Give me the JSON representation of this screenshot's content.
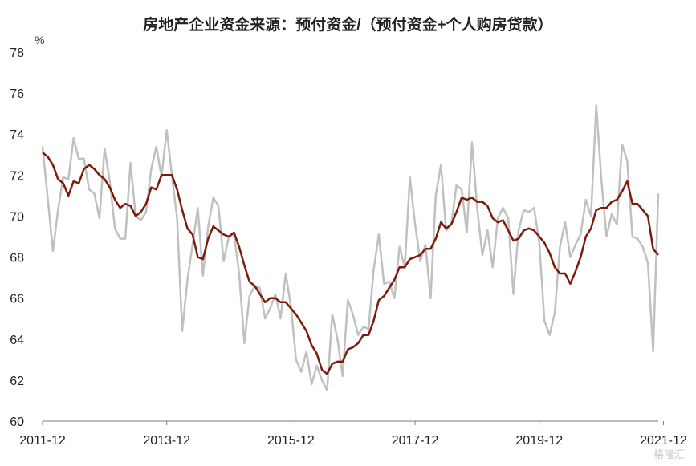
{
  "chart_data": {
    "type": "line",
    "title": "房地产企业资金来源：预付资金/（预付资金+个人购房贷款）",
    "unit": "%",
    "xlabel": "",
    "ylabel": "",
    "ylim": [
      60,
      78
    ],
    "yticks": [
      60,
      62,
      64,
      66,
      68,
      70,
      72,
      74,
      76,
      78
    ],
    "x_tick_labels": [
      "2011-12",
      "2013-12",
      "2015-12",
      "2017-12",
      "2019-12",
      "2021-12"
    ],
    "x_range": [
      "2011-12",
      "2021-12"
    ],
    "grid": false,
    "legend": "none",
    "series": [
      {
        "color": "#c0c0c0",
        "values": [
          73.4,
          70.9,
          68.3,
          70.3,
          71.9,
          71.8,
          73.8,
          72.8,
          72.8,
          71.3,
          71.1,
          69.9,
          73.3,
          71.7,
          69.4,
          68.9,
          68.9,
          72.6,
          70.0,
          69.8,
          70.2,
          72.3,
          73.4,
          71.9,
          74.2,
          72.0,
          69.9,
          64.4,
          66.9,
          68.6,
          70.4,
          67.1,
          69.5,
          70.9,
          70.5,
          67.8,
          69.0,
          69.1,
          67.2,
          63.8,
          66.1,
          66.6,
          66.5,
          65.0,
          65.5,
          66.2,
          65.0,
          67.2,
          65.6,
          63.0,
          62.4,
          63.4,
          61.8,
          62.7,
          62.0,
          61.5,
          65.2,
          64.0,
          62.2,
          65.9,
          65.2,
          64.2,
          64.6,
          64.5,
          67.4,
          69.1,
          66.7,
          66.8,
          66.0,
          68.5,
          67.5,
          71.9,
          69.6,
          67.8,
          68.6,
          66.0,
          71.0,
          72.5,
          69.3,
          69.6,
          71.5,
          71.3,
          69.2,
          73.6,
          70.4,
          68.1,
          69.3,
          67.5,
          69.9,
          70.4,
          69.9,
          66.2,
          69.3,
          70.3,
          70.2,
          70.4,
          68.7,
          64.9,
          64.2,
          65.3,
          68.5,
          69.7,
          68.0,
          68.6,
          69.1,
          70.8,
          70.0,
          75.4,
          71.8,
          69.0,
          70.1,
          69.6,
          73.5,
          72.7,
          69.0,
          68.9,
          68.5,
          67.7,
          63.4,
          71.1
        ]
      },
      {
        "color": "#7b1c0b",
        "values": [
          73.1,
          72.9,
          72.5,
          71.8,
          71.6,
          71.0,
          71.7,
          71.6,
          72.3,
          72.5,
          72.3,
          72.0,
          71.8,
          71.4,
          70.8,
          70.4,
          70.6,
          70.5,
          70.0,
          70.2,
          70.6,
          71.4,
          71.3,
          72.0,
          72.0,
          72.0,
          71.3,
          70.3,
          69.4,
          69.1,
          68.0,
          67.9,
          68.9,
          69.5,
          69.3,
          69.1,
          69.0,
          69.2,
          68.5,
          67.6,
          66.8,
          66.6,
          66.2,
          65.8,
          66.0,
          66.0,
          65.8,
          65.8,
          65.5,
          65.2,
          64.8,
          64.4,
          63.7,
          63.3,
          62.5,
          62.3,
          62.8,
          62.9,
          62.9,
          63.5,
          63.6,
          63.8,
          64.2,
          64.2,
          64.9,
          65.9,
          66.1,
          66.5,
          66.9,
          67.5,
          67.5,
          67.9,
          68.0,
          68.1,
          68.4,
          68.4,
          68.9,
          69.7,
          69.4,
          69.6,
          70.2,
          70.9,
          70.8,
          70.9,
          70.7,
          70.7,
          70.5,
          69.9,
          69.7,
          69.8,
          69.3,
          68.8,
          68.9,
          69.3,
          69.4,
          69.3,
          69.0,
          68.7,
          68.2,
          67.5,
          67.2,
          67.2,
          66.7,
          67.3,
          68.0,
          69.0,
          69.4,
          70.3,
          70.4,
          70.4,
          70.7,
          70.8,
          71.2,
          71.7,
          70.6,
          70.6,
          70.3,
          70.0,
          68.4,
          68.1
        ]
      }
    ]
  },
  "watermark": "格隆汇"
}
